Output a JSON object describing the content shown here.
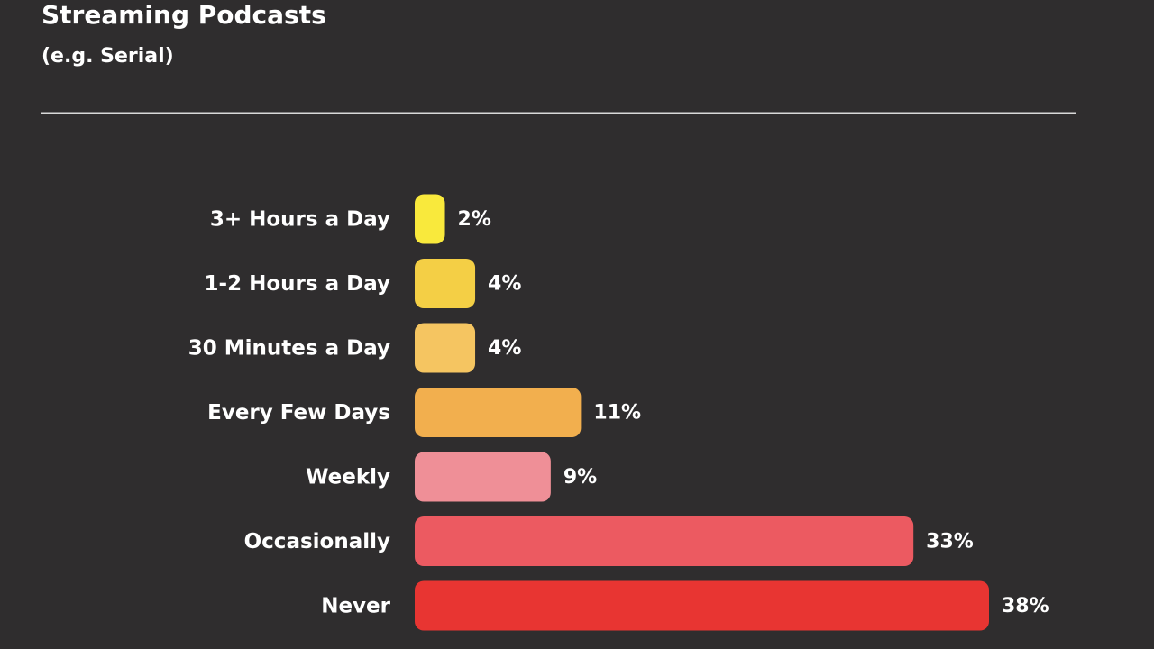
{
  "chart_data": {
    "type": "bar",
    "orientation": "horizontal",
    "title": "Streaming Podcasts",
    "subtitle": "(e.g. Serial)",
    "categories": [
      "3+ Hours a Day",
      "1-2 Hours a Day",
      "30 Minutes a Day",
      "Every Few Days",
      "Weekly",
      "Occasionally",
      "Never"
    ],
    "values": [
      2,
      4,
      4,
      11,
      9,
      33,
      38
    ],
    "value_labels": [
      "2%",
      "4%",
      "4%",
      "11%",
      "9%",
      "33%",
      "38%"
    ],
    "colors": [
      "#f9e93c",
      "#f4cf45",
      "#f5c561",
      "#f2af4e",
      "#ef8f97",
      "#ec5a61",
      "#e83532"
    ]
  }
}
